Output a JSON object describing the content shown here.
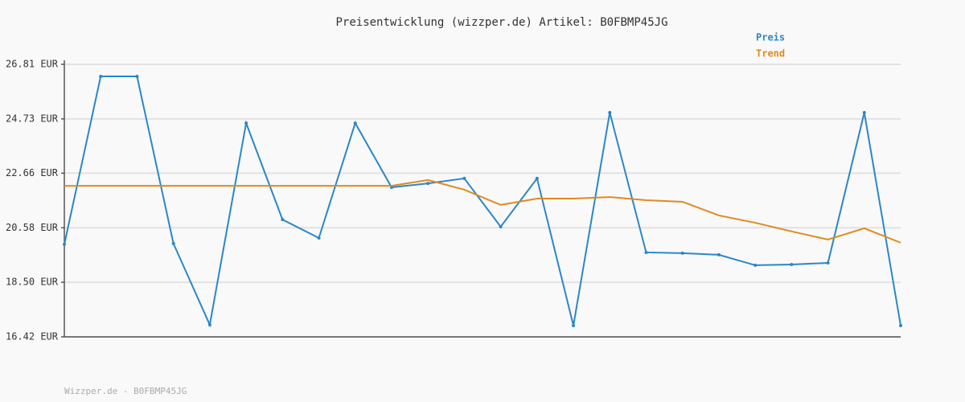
{
  "chart_data": {
    "type": "line",
    "title": "Preisentwicklung (wizzper.de) Artikel: B0FBMP45JG",
    "footer": "Wizzper.de - B0FBMP45JG",
    "categories": [
      null,
      null,
      null,
      null,
      null,
      null,
      null,
      null,
      null,
      null,
      null,
      null,
      null,
      null,
      null,
      null,
      null,
      null,
      null,
      null,
      null,
      null,
      null,
      null
    ],
    "series": [
      {
        "name": "Preis",
        "color": "#2a87c8",
        "markers": true,
        "values": [
          19.95,
          26.35,
          26.35,
          19.98,
          16.88,
          24.57,
          20.89,
          20.19,
          24.57,
          22.12,
          22.27,
          22.46,
          20.62,
          22.46,
          16.85,
          24.97,
          19.64,
          19.61,
          19.55,
          19.15,
          19.18,
          19.24,
          24.97,
          16.85
        ]
      },
      {
        "name": "Trend",
        "color": "#e08a1e",
        "markers": false,
        "values": [
          22.18,
          22.18,
          22.18,
          22.18,
          22.18,
          22.18,
          22.18,
          22.18,
          22.18,
          22.18,
          22.4,
          22.03,
          21.45,
          21.69,
          21.69,
          21.75,
          21.63,
          21.57,
          21.05,
          20.77,
          20.44,
          20.13,
          20.56,
          20.01
        ]
      }
    ],
    "ylim": [
      16.42,
      26.81
    ],
    "yticks": [
      {
        "value": 16.42,
        "label": "16.42 EUR"
      },
      {
        "value": 18.5,
        "label": "18.50 EUR"
      },
      {
        "value": 20.58,
        "label": "20.58 EUR"
      },
      {
        "value": 22.66,
        "label": "22.66 EUR"
      },
      {
        "value": 24.73,
        "label": "24.73 EUR"
      },
      {
        "value": 26.81,
        "label": "26.81 EUR"
      }
    ],
    "grid": true,
    "legend": "top-right"
  }
}
